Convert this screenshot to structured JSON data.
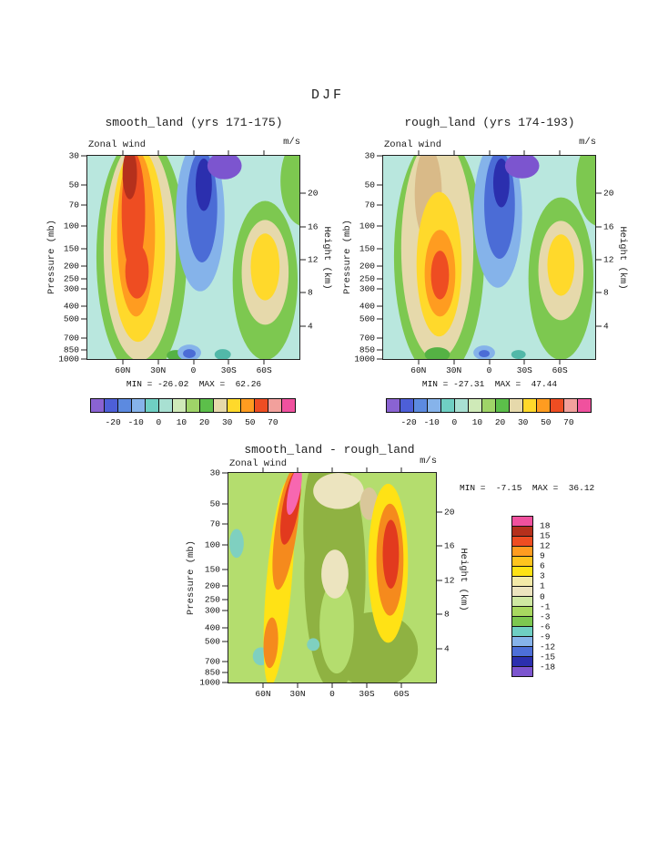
{
  "figure": {
    "title": "DJF"
  },
  "chart_data": [
    {
      "type": "heatmap",
      "panel": "smooth_land",
      "title": "smooth_land (yrs 171-175)",
      "field_label": "Zonal wind",
      "units": "m/s",
      "ylabel_left": "Pressure (mb)",
      "ylabel_right": "Height (km)",
      "pressure_range": [
        30,
        1000
      ],
      "scale_height_km": 7,
      "lat_range": [
        90,
        -90
      ],
      "pressure_ticks": [
        30,
        50,
        70,
        100,
        150,
        200,
        250,
        300,
        400,
        500,
        700,
        850,
        1000
      ],
      "height_ticks": [
        20,
        16,
        12,
        8,
        4
      ],
      "lat_ticks": [
        {
          "label": "60N",
          "lat": 60
        },
        {
          "label": "30N",
          "lat": 30
        },
        {
          "label": "0",
          "lat": 0
        },
        {
          "label": "30S",
          "lat": -30
        },
        {
          "label": "60S",
          "lat": -60
        }
      ],
      "min": -26.02,
      "max": 62.26,
      "minmax_text": "MIN = -26.02  MAX =  62.26",
      "colorbar": {
        "orientation": "horizontal",
        "labels": [
          "-20",
          "-10",
          "0",
          "10",
          "20",
          "30",
          "50",
          "70"
        ],
        "colors": [
          "#8a63d2",
          "#4d5fd8",
          "#5c8ae0",
          "#86b3ea",
          "#6fcfc3",
          "#a8e0d2",
          "#cfeab8",
          "#9fd468",
          "#5cbf4a",
          "#e6d9ab",
          "#ffd92b",
          "#ff9c20",
          "#ee4d22",
          "#f2a09c",
          "#f0519e"
        ]
      }
    },
    {
      "type": "heatmap",
      "panel": "rough_land",
      "title": "rough_land (yrs 174-193)",
      "field_label": "Zonal wind",
      "units": "m/s",
      "ylabel_left": "Pressure (mb)",
      "ylabel_right": "Height (km)",
      "pressure_range": [
        30,
        1000
      ],
      "scale_height_km": 7,
      "lat_range": [
        90,
        -90
      ],
      "pressure_ticks": [
        30,
        50,
        70,
        100,
        150,
        200,
        250,
        300,
        400,
        500,
        700,
        850,
        1000
      ],
      "height_ticks": [
        20,
        16,
        12,
        8,
        4
      ],
      "lat_ticks": [
        {
          "label": "60N",
          "lat": 60
        },
        {
          "label": "30N",
          "lat": 30
        },
        {
          "label": "0",
          "lat": 0
        },
        {
          "label": "30S",
          "lat": -30
        },
        {
          "label": "60S",
          "lat": -60
        }
      ],
      "min": -27.31,
      "max": 47.44,
      "minmax_text": "MIN = -27.31  MAX =  47.44",
      "colorbar": {
        "orientation": "horizontal",
        "labels": [
          "-20",
          "-10",
          "0",
          "10",
          "20",
          "30",
          "50",
          "70"
        ],
        "colors": [
          "#8a63d2",
          "#4d5fd8",
          "#5c8ae0",
          "#86b3ea",
          "#6fcfc3",
          "#a8e0d2",
          "#cfeab8",
          "#9fd468",
          "#5cbf4a",
          "#e6d9ab",
          "#ffd92b",
          "#ff9c20",
          "#ee4d22",
          "#f2a09c",
          "#f0519e"
        ]
      }
    },
    {
      "type": "heatmap",
      "panel": "difference",
      "title": "smooth_land - rough_land",
      "field_label": "Zonal wind",
      "units": "m/s",
      "ylabel_left": "Pressure (mb)",
      "ylabel_right": "Height (km)",
      "pressure_range": [
        30,
        1000
      ],
      "scale_height_km": 7,
      "lat_range": [
        90,
        -90
      ],
      "pressure_ticks": [
        30,
        50,
        70,
        100,
        150,
        200,
        250,
        300,
        400,
        500,
        700,
        850,
        1000
      ],
      "height_ticks": [
        20,
        16,
        12,
        8,
        4
      ],
      "lat_ticks": [
        {
          "label": "60N",
          "lat": 60
        },
        {
          "label": "30N",
          "lat": 30
        },
        {
          "label": "0",
          "lat": 0
        },
        {
          "label": "30S",
          "lat": -30
        },
        {
          "label": "60S",
          "lat": -60
        }
      ],
      "min": -7.15,
      "max": 36.12,
      "minmax_text": "MIN =  -7.15  MAX =  36.12",
      "colorbar": {
        "orientation": "vertical",
        "labels": [
          "18",
          "15",
          "12",
          "9",
          "6",
          "3",
          "1",
          "0",
          "-1",
          "-3",
          "-6",
          "-9",
          "-12",
          "-15",
          "-18"
        ],
        "colors": [
          "#f0519e",
          "#b5301c",
          "#ee4d22",
          "#ff9c20",
          "#ffc41e",
          "#ffe215",
          "#f3eaa8",
          "#ece4bf",
          "#cfe8a2",
          "#a8d860",
          "#7dc850",
          "#6fcfc3",
          "#86b3ea",
          "#4d6fd8",
          "#2b2fae",
          "#7c55cf"
        ]
      }
    }
  ]
}
